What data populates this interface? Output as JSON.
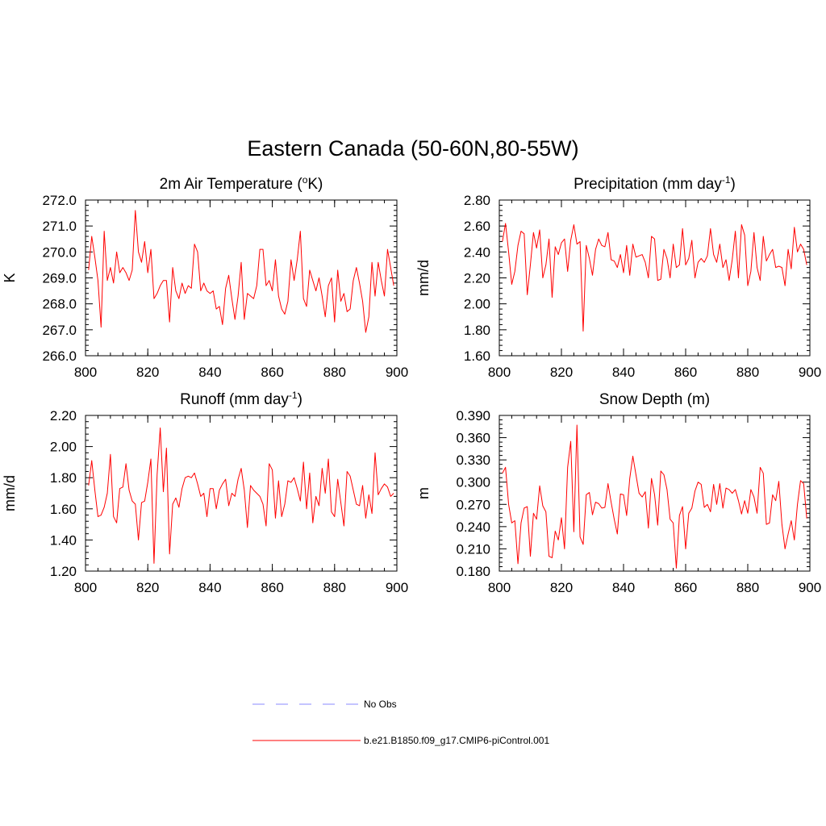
{
  "title": "Eastern Canada (50-60N,80-55W)",
  "colors": {
    "model": "#ff0000",
    "obs": "#8888ff",
    "axis": "#000000"
  },
  "legend": {
    "obs_label": "No Obs",
    "model_label": "b.e21.B1850.f09_g17.CMIP6-piControl.001"
  },
  "chart_data": [
    {
      "type": "line",
      "title": "2m Air Temperature (",
      "title_sup": "o",
      "title_tail": "K)",
      "ylabel": "K",
      "xlim": [
        800,
        900
      ],
      "ylim": [
        266.0,
        272.0
      ],
      "x_ticks": [
        "800",
        "820",
        "840",
        "860",
        "880",
        "900"
      ],
      "y_ticks": [
        "266.0",
        "267.0",
        "268.0",
        "269.0",
        "270.0",
        "271.0",
        "272.0"
      ],
      "x_start": 801,
      "series": [
        {
          "name": "b.e21.B1850.f09_g17.CMIP6-piControl.001",
          "values": [
            269.3,
            270.6,
            269.8,
            268.9,
            267.1,
            270.8,
            268.9,
            269.4,
            268.8,
            270.0,
            269.2,
            269.4,
            269.2,
            268.9,
            269.3,
            271.6,
            270.0,
            269.6,
            270.4,
            269.2,
            270.1,
            268.2,
            268.4,
            268.7,
            268.9,
            268.9,
            267.3,
            269.4,
            268.5,
            268.2,
            268.8,
            268.4,
            268.7,
            268.6,
            270.3,
            270.0,
            268.5,
            268.8,
            268.5,
            268.4,
            268.5,
            267.8,
            267.9,
            267.2,
            268.6,
            269.1,
            268.2,
            267.4,
            268.3,
            269.6,
            267.4,
            268.4,
            268.3,
            268.2,
            268.7,
            270.1,
            270.1,
            268.7,
            268.9,
            268.5,
            269.7,
            268.3,
            267.8,
            267.6,
            268.1,
            269.7,
            268.9,
            269.7,
            270.8,
            268.2,
            267.9,
            269.3,
            268.9,
            268.5,
            269.0,
            268.3,
            267.5,
            268.7,
            269.0,
            267.3,
            269.3,
            268.1,
            268.4,
            267.7,
            267.8,
            268.9,
            269.4,
            268.8,
            268.1,
            266.9,
            267.5,
            269.6,
            268.3,
            269.6,
            268.9,
            268.3,
            270.1,
            269.4,
            268.7
          ]
        }
      ]
    },
    {
      "type": "line",
      "title": "Precipitation (mm day",
      "title_sup": "-1",
      "title_tail": ")",
      "ylabel": "mm/d",
      "xlim": [
        800,
        900
      ],
      "ylim": [
        1.6,
        2.8
      ],
      "x_ticks": [
        "800",
        "820",
        "840",
        "860",
        "880",
        "900"
      ],
      "y_ticks": [
        "1.60",
        "1.80",
        "2.00",
        "2.20",
        "2.40",
        "2.60",
        "2.80"
      ],
      "x_start": 801,
      "series": [
        {
          "name": "b.e21.B1850.f09_g17.CMIP6-piControl.001",
          "values": [
            2.48,
            2.62,
            2.4,
            2.15,
            2.25,
            2.45,
            2.56,
            2.54,
            2.07,
            2.3,
            2.55,
            2.43,
            2.57,
            2.2,
            2.3,
            2.5,
            2.05,
            2.44,
            2.38,
            2.47,
            2.5,
            2.25,
            2.49,
            2.61,
            2.46,
            2.48,
            1.79,
            2.45,
            2.35,
            2.22,
            2.42,
            2.5,
            2.45,
            2.44,
            2.55,
            2.34,
            2.33,
            2.28,
            2.38,
            2.24,
            2.45,
            2.22,
            2.46,
            2.36,
            2.37,
            2.38,
            2.32,
            2.2,
            2.52,
            2.5,
            2.18,
            2.19,
            2.42,
            2.35,
            2.2,
            2.46,
            2.28,
            2.3,
            2.58,
            2.3,
            2.35,
            2.49,
            2.2,
            2.32,
            2.35,
            2.32,
            2.37,
            2.58,
            2.38,
            2.32,
            2.46,
            2.28,
            2.34,
            2.18,
            2.34,
            2.56,
            2.2,
            2.61,
            2.53,
            2.14,
            2.25,
            2.55,
            2.28,
            2.18,
            2.52,
            2.33,
            2.38,
            2.42,
            2.28,
            2.29,
            2.28,
            2.14,
            2.42,
            2.27,
            2.59,
            2.4,
            2.46,
            2.42,
            2.3
          ]
        }
      ]
    },
    {
      "type": "line",
      "title": "Runoff (mm day",
      "title_sup": "-1",
      "title_tail": ")",
      "ylabel": "mm/d",
      "xlim": [
        800,
        900
      ],
      "ylim": [
        1.2,
        2.2
      ],
      "x_ticks": [
        "800",
        "820",
        "840",
        "860",
        "880",
        "900"
      ],
      "y_ticks": [
        "1.20",
        "1.40",
        "1.60",
        "1.80",
        "2.00",
        "2.20"
      ],
      "x_start": 801,
      "series": [
        {
          "name": "b.e21.B1850.f09_g17.CMIP6-piControl.001",
          "values": [
            1.75,
            1.91,
            1.72,
            1.55,
            1.56,
            1.61,
            1.7,
            1.95,
            1.55,
            1.51,
            1.73,
            1.74,
            1.89,
            1.72,
            1.65,
            1.63,
            1.4,
            1.64,
            1.65,
            1.77,
            1.92,
            1.25,
            1.82,
            2.12,
            1.71,
            1.99,
            1.31,
            1.63,
            1.67,
            1.61,
            1.73,
            1.8,
            1.81,
            1.8,
            1.83,
            1.76,
            1.68,
            1.7,
            1.55,
            1.73,
            1.73,
            1.6,
            1.72,
            1.76,
            1.79,
            1.62,
            1.7,
            1.68,
            1.79,
            1.86,
            1.72,
            1.48,
            1.75,
            1.72,
            1.7,
            1.68,
            1.63,
            1.49,
            1.89,
            1.85,
            1.54,
            1.78,
            1.55,
            1.63,
            1.78,
            1.77,
            1.8,
            1.73,
            1.65,
            1.9,
            1.6,
            1.83,
            1.51,
            1.68,
            1.62,
            1.86,
            1.7,
            1.92,
            1.58,
            1.55,
            1.79,
            1.64,
            1.49,
            1.84,
            1.81,
            1.72,
            1.63,
            1.62,
            1.75,
            1.54,
            1.69,
            1.57,
            1.96,
            1.69,
            1.73,
            1.76,
            1.74,
            1.68,
            1.7
          ]
        }
      ]
    },
    {
      "type": "line",
      "title": "Snow Depth (m)",
      "title_sup": "",
      "title_tail": "",
      "ylabel": "m",
      "xlim": [
        800,
        900
      ],
      "ylim": [
        0.18,
        0.39
      ],
      "x_ticks": [
        "800",
        "820",
        "840",
        "860",
        "880",
        "900"
      ],
      "y_ticks": [
        "0.180",
        "0.210",
        "0.240",
        "0.270",
        "0.300",
        "0.330",
        "0.360",
        "0.390"
      ],
      "x_start": 801,
      "series": [
        {
          "name": "b.e21.B1850.f09_g17.CMIP6-piControl.001",
          "values": [
            0.312,
            0.32,
            0.27,
            0.245,
            0.248,
            0.19,
            0.245,
            0.265,
            0.267,
            0.2,
            0.258,
            0.25,
            0.295,
            0.268,
            0.26,
            0.2,
            0.198,
            0.234,
            0.222,
            0.252,
            0.21,
            0.32,
            0.355,
            0.233,
            0.377,
            0.226,
            0.216,
            0.283,
            0.286,
            0.256,
            0.273,
            0.271,
            0.265,
            0.266,
            0.298,
            0.273,
            0.25,
            0.23,
            0.284,
            0.283,
            0.255,
            0.305,
            0.335,
            0.31,
            0.285,
            0.28,
            0.287,
            0.238,
            0.305,
            0.283,
            0.242,
            0.315,
            0.31,
            0.29,
            0.25,
            0.245,
            0.184,
            0.255,
            0.267,
            0.21,
            0.258,
            0.265,
            0.288,
            0.3,
            0.297,
            0.266,
            0.27,
            0.26,
            0.297,
            0.27,
            0.298,
            0.265,
            0.292,
            0.29,
            0.285,
            0.29,
            0.275,
            0.257,
            0.275,
            0.258,
            0.29,
            0.28,
            0.258,
            0.32,
            0.312,
            0.243,
            0.245,
            0.283,
            0.275,
            0.301,
            0.243,
            0.21,
            0.23,
            0.248,
            0.222,
            0.27,
            0.302,
            0.298,
            0.251
          ]
        }
      ]
    }
  ]
}
